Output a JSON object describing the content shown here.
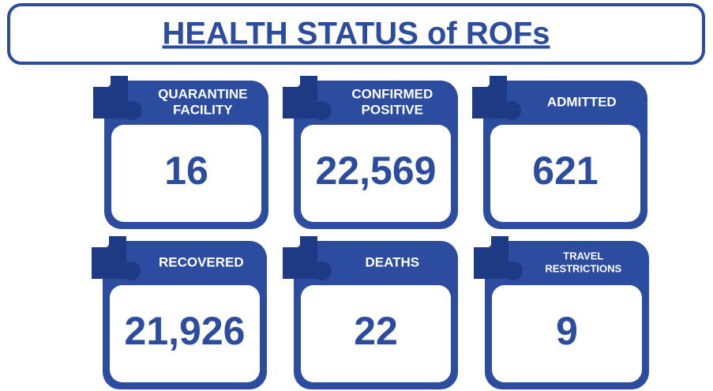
{
  "header": {
    "title": "HEALTH STATUS of ROFs"
  },
  "cards": [
    {
      "label": [
        "QUARANTINE",
        "FACILITY"
      ],
      "value": "16"
    },
    {
      "label": [
        "CONFIRMED",
        "POSITIVE"
      ],
      "value": "22,569"
    },
    {
      "label": [
        "ADMITTED"
      ],
      "value": "621"
    },
    {
      "label": [
        "RECOVERED"
      ],
      "value": "21,926"
    },
    {
      "label": [
        "DEATHS"
      ],
      "value": "22"
    },
    {
      "label": [
        "TRAVEL",
        "RESTRICTIONS"
      ],
      "value": "9"
    }
  ]
}
